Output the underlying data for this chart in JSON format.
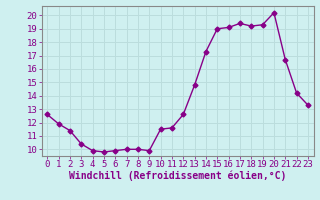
{
  "x": [
    0,
    1,
    2,
    3,
    4,
    5,
    6,
    7,
    8,
    9,
    10,
    11,
    12,
    13,
    14,
    15,
    16,
    17,
    18,
    19,
    20,
    21,
    22,
    23
  ],
  "y": [
    12.6,
    11.9,
    11.4,
    10.4,
    9.9,
    9.8,
    9.9,
    10.0,
    10.0,
    9.9,
    11.5,
    11.6,
    12.6,
    14.8,
    17.3,
    19.0,
    19.1,
    19.4,
    19.2,
    19.3,
    20.2,
    16.7,
    14.2,
    13.3
  ],
  "line_color": "#880088",
  "marker": "D",
  "markersize": 2.5,
  "linewidth": 1.0,
  "xlabel": "Windchill (Refroidissement éolien,°C)",
  "xlabel_fontsize": 7,
  "xtick_labels": [
    "0",
    "1",
    "2",
    "3",
    "4",
    "5",
    "6",
    "7",
    "8",
    "9",
    "10",
    "11",
    "12",
    "13",
    "14",
    "15",
    "16",
    "17",
    "18",
    "19",
    "20",
    "21",
    "22",
    "23"
  ],
  "ylim": [
    9.5,
    20.7
  ],
  "yticks": [
    10,
    11,
    12,
    13,
    14,
    15,
    16,
    17,
    18,
    19,
    20
  ],
  "bg_color": "#cff0f0",
  "grid_color": "#bbdddd",
  "tick_fontsize": 6.5,
  "spine_color": "#888888"
}
